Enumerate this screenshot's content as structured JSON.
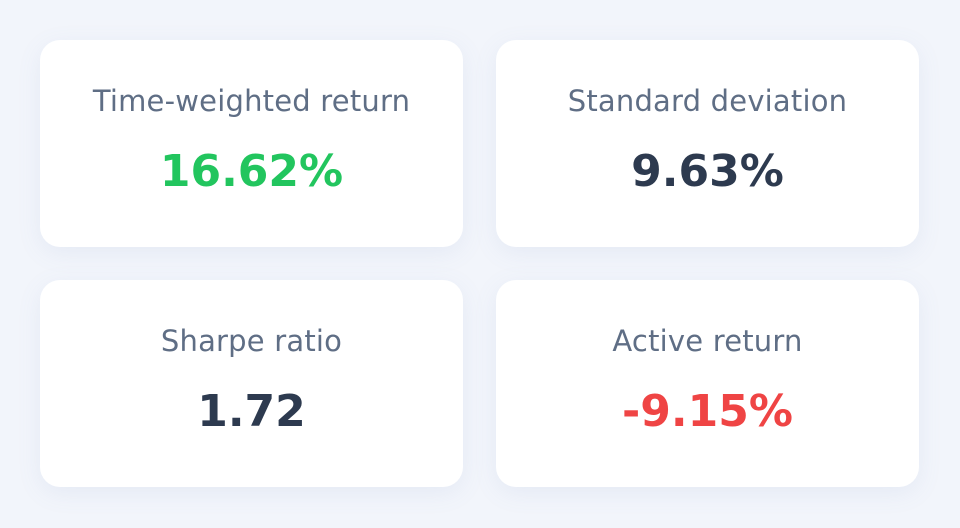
{
  "cards": [
    {
      "label": "Time-weighted return",
      "value": "16.62%",
      "color": "#22c55e"
    },
    {
      "label": "Standard deviation",
      "value": "9.63%",
      "color": "#2d3a4f"
    },
    {
      "label": "Sharpe ratio",
      "value": "1.72",
      "color": "#2d3a4f"
    },
    {
      "label": "Active return",
      "value": "-9.15%",
      "color": "#ef4444"
    }
  ]
}
